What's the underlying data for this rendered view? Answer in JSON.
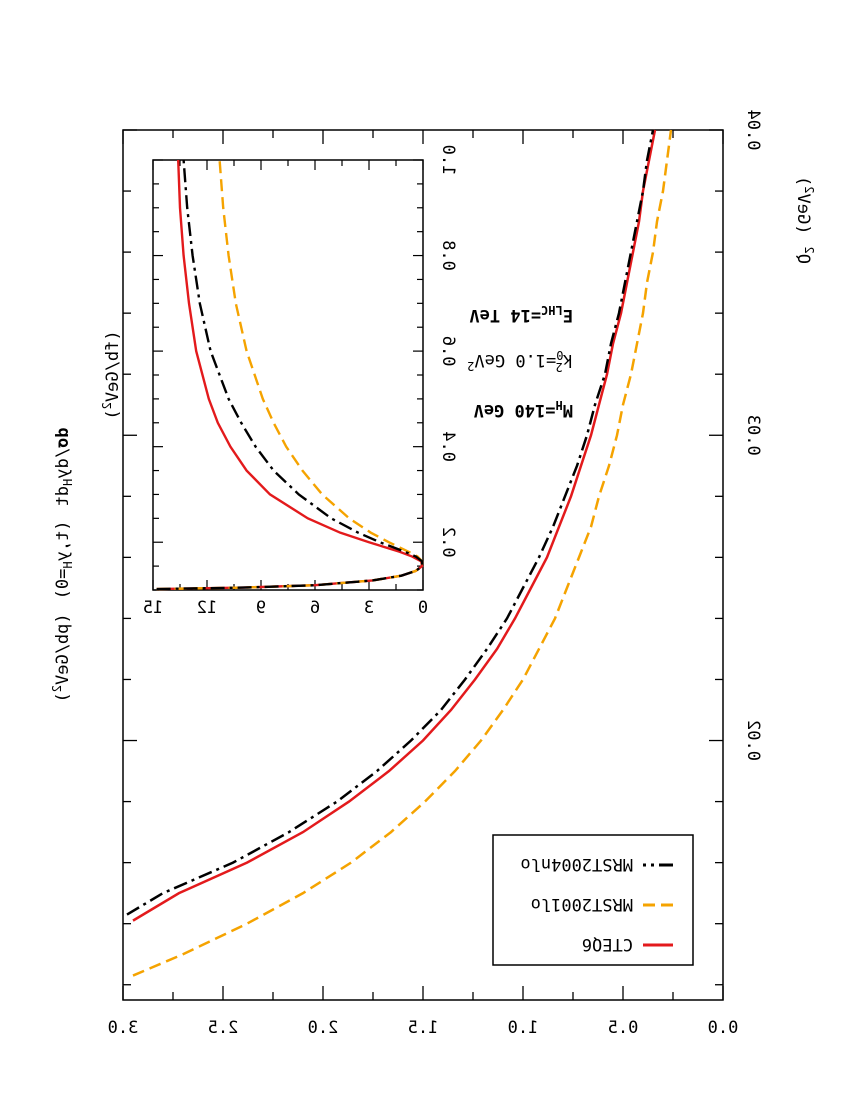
{
  "colors": {
    "cteq": "#e31a1c",
    "mrst2001": "#f5a300",
    "mrst2004": "#000000"
  },
  "chart_data": [
    {
      "type": "line",
      "name": "main",
      "xlabel_main": "Q",
      "xlabel_exp": "2",
      "xlabel_units": "(GeV",
      "xlabel_units_exp": "2",
      "xlabel_close": ")",
      "ylabel_parts": {
        "d": "d",
        "sigma": "σ",
        "dy": "/dy",
        "H1": "H",
        "dt": "dt",
        "args": "(t,y",
        "H2": "H",
        "eq0": "=0)",
        "units": "(pb/GeV",
        "units_exp": "2",
        "units_close": ")"
      },
      "xlim": [
        0.0115,
        0.04
      ],
      "ylim": [
        0,
        3.0
      ],
      "xticks": [
        "0.02",
        "0.03",
        "0.04"
      ],
      "yticks": [
        "0.0",
        "0.5",
        "1.0",
        "1.5",
        "2.0",
        "2.5",
        "3.0"
      ],
      "legend": [
        "CTEQ6",
        "MRST2001lo",
        "MRST2004nlo"
      ],
      "series": [
        {
          "name": "CTEQ6",
          "x": [
            0.0141,
            0.015,
            0.016,
            0.017,
            0.018,
            0.019,
            0.02,
            0.021,
            0.022,
            0.023,
            0.024,
            0.025,
            0.026,
            0.027,
            0.028,
            0.029,
            0.03,
            0.031,
            0.032,
            0.033,
            0.034,
            0.035,
            0.036,
            0.037,
            0.038,
            0.039,
            0.04
          ],
          "y": [
            2.95,
            2.72,
            2.38,
            2.1,
            1.87,
            1.67,
            1.5,
            1.36,
            1.24,
            1.13,
            1.04,
            0.96,
            0.88,
            0.82,
            0.76,
            0.71,
            0.66,
            0.62,
            0.58,
            0.55,
            0.51,
            0.48,
            0.45,
            0.42,
            0.4,
            0.37,
            0.34
          ]
        },
        {
          "name": "MRST2001lo",
          "x": [
            0.0123,
            0.013,
            0.014,
            0.015,
            0.016,
            0.017,
            0.018,
            0.019,
            0.02,
            0.021,
            0.022,
            0.023,
            0.024,
            0.025,
            0.026,
            0.027,
            0.028,
            0.029,
            0.03,
            0.031,
            0.032,
            0.033,
            0.034,
            0.035,
            0.036,
            0.037,
            0.038,
            0.039,
            0.04
          ],
          "y": [
            2.95,
            2.7,
            2.38,
            2.1,
            1.86,
            1.66,
            1.49,
            1.34,
            1.21,
            1.1,
            1.0,
            0.92,
            0.84,
            0.78,
            0.72,
            0.66,
            0.62,
            0.57,
            0.53,
            0.5,
            0.46,
            0.43,
            0.4,
            0.38,
            0.35,
            0.33,
            0.3,
            0.28,
            0.26
          ]
        },
        {
          "name": "MRST2004nlo",
          "x": [
            0.0143,
            0.015,
            0.016,
            0.017,
            0.018,
            0.019,
            0.02,
            0.021,
            0.022,
            0.023,
            0.024,
            0.025,
            0.026,
            0.027,
            0.028,
            0.029,
            0.03,
            0.031,
            0.032,
            0.033,
            0.034,
            0.035,
            0.036,
            0.037,
            0.038,
            0.039,
            0.04
          ],
          "y": [
            2.98,
            2.8,
            2.45,
            2.17,
            1.93,
            1.73,
            1.56,
            1.41,
            1.29,
            1.18,
            1.08,
            1.0,
            0.92,
            0.85,
            0.79,
            0.73,
            0.68,
            0.64,
            0.59,
            0.56,
            0.52,
            0.49,
            0.46,
            0.43,
            0.4,
            0.38,
            0.35
          ]
        }
      ]
    },
    {
      "type": "line",
      "name": "inset",
      "ylabel_units": "(fb/GeV",
      "ylabel_exp": "2",
      "ylabel_close": ")",
      "xlim": [
        0.1,
        1.0
      ],
      "ylim": [
        0,
        15
      ],
      "xticks": [
        "0.2",
        "0.4",
        "0.6",
        "0.8",
        "1.0"
      ],
      "yticks": [
        "0",
        "3",
        "6",
        "9",
        "12",
        "15"
      ],
      "series": [
        {
          "name": "CTEQ6",
          "x": [
            0.102,
            0.105,
            0.11,
            0.12,
            0.13,
            0.14,
            0.15,
            0.16,
            0.17,
            0.18,
            0.2,
            0.22,
            0.25,
            0.3,
            0.35,
            0.4,
            0.45,
            0.5,
            0.6,
            0.7,
            0.8,
            0.9,
            1.0
          ],
          "y": [
            14.8,
            10.0,
            6.0,
            2.8,
            1.2,
            0.4,
            0.05,
            0.1,
            0.6,
            1.3,
            3.0,
            4.6,
            6.4,
            8.5,
            9.8,
            10.7,
            11.4,
            11.9,
            12.6,
            13.0,
            13.3,
            13.5,
            13.6
          ]
        },
        {
          "name": "MRST2001lo",
          "x": [
            0.102,
            0.105,
            0.11,
            0.12,
            0.13,
            0.14,
            0.15,
            0.16,
            0.17,
            0.18,
            0.2,
            0.22,
            0.25,
            0.3,
            0.35,
            0.4,
            0.45,
            0.5,
            0.6,
            0.7,
            0.8,
            0.9,
            1.0
          ],
          "y": [
            14.8,
            10.0,
            6.0,
            2.8,
            1.2,
            0.4,
            0.05,
            0.05,
            0.3,
            0.8,
            1.9,
            2.9,
            4.1,
            5.6,
            6.7,
            7.6,
            8.3,
            8.9,
            9.8,
            10.4,
            10.8,
            11.1,
            11.3
          ]
        },
        {
          "name": "MRST2004nlo",
          "x": [
            0.102,
            0.105,
            0.11,
            0.12,
            0.13,
            0.14,
            0.15,
            0.16,
            0.17,
            0.18,
            0.2,
            0.22,
            0.25,
            0.3,
            0.35,
            0.4,
            0.45,
            0.5,
            0.6,
            0.7,
            0.8,
            0.9,
            1.0
          ],
          "y": [
            14.8,
            10.0,
            6.0,
            2.8,
            1.2,
            0.4,
            0.05,
            0.05,
            0.4,
            1.0,
            2.4,
            3.6,
            5.1,
            6.9,
            8.3,
            9.3,
            10.1,
            10.8,
            11.8,
            12.4,
            12.8,
            13.1,
            13.3
          ]
        }
      ],
      "annotations": {
        "e_main": "E",
        "e_sub": "LHC",
        "e_val": "=14 TeV",
        "k_main": "k",
        "k_sup": "2",
        "k_sub": "0",
        "k_val": "=1.0 GeV",
        "k_val_sup": "2",
        "m_main": "M",
        "m_sub": "H",
        "m_val": "=140 GeV"
      }
    }
  ]
}
